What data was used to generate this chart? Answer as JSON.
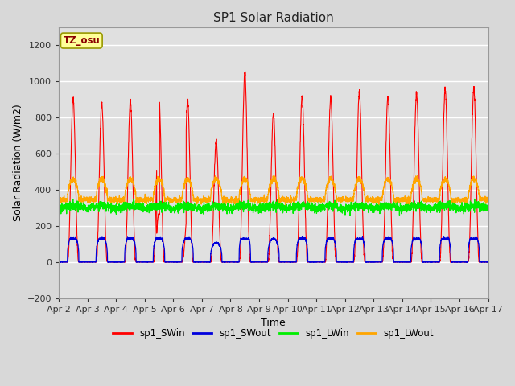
{
  "title": "SP1 Solar Radiation",
  "xlabel": "Time",
  "ylabel": "Solar Radiation (W/m2)",
  "ylim": [
    -200,
    1300
  ],
  "xlim_days": [
    0,
    15
  ],
  "colors": {
    "sp1_SWin": "#FF0000",
    "sp1_SWout": "#0000DD",
    "sp1_LWin": "#00EE00",
    "sp1_LWout": "#FFA500"
  },
  "legend_labels": [
    "sp1_SWin",
    "sp1_SWout",
    "sp1_LWin",
    "sp1_LWout"
  ],
  "tz_label": "TZ_osu",
  "background_color": "#D8D8D8",
  "plot_bg_color": "#E0E0E0",
  "yticks": [
    -200,
    0,
    200,
    400,
    600,
    800,
    1000,
    1200
  ],
  "xtick_labels": [
    "Apr 2",
    "Apr 3",
    "Apr 4",
    "Apr 5",
    "Apr 6",
    "Apr 7",
    "Apr 8",
    "Apr 9",
    "Apr 10",
    "Apr 11",
    "Apr 12",
    "Apr 13",
    "Apr 14",
    "Apr 15",
    "Apr 16",
    "Apr 17"
  ],
  "xtick_positions": [
    0,
    1,
    2,
    3,
    4,
    5,
    6,
    7,
    8,
    9,
    10,
    11,
    12,
    13,
    14,
    15
  ]
}
